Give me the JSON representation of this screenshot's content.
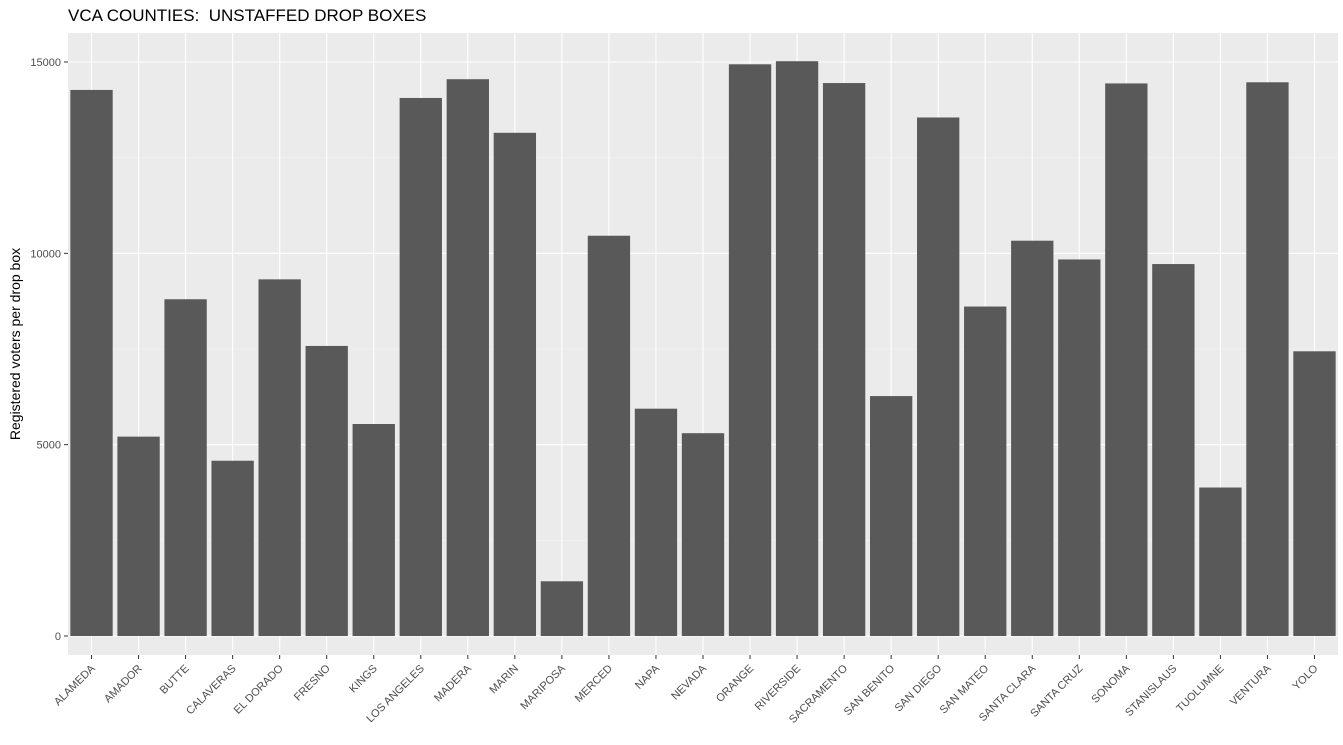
{
  "chart_data": {
    "type": "bar",
    "title": "VCA COUNTIES:  UNSTAFFED DROP BOXES",
    "xlabel": "",
    "ylabel": "Registered voters per drop box",
    "ylim": [
      0,
      15600
    ],
    "yticks": [
      0,
      5000,
      10000,
      15000
    ],
    "grid": true,
    "legend": "none",
    "categories": [
      "ALAMEDA",
      "AMADOR",
      "BUTTE",
      "CALAVERAS",
      "EL DORADO",
      "FRESNO",
      "KINGS",
      "LOS ANGELES",
      "MADERA",
      "MARIN",
      "MARIPOSA",
      "MERCED",
      "NAPA",
      "NEVADA",
      "ORANGE",
      "RIVERSIDE",
      "SACRAMENTO",
      "SAN BENITO",
      "SAN DIEGO",
      "SAN MATEO",
      "SANTA CLARA",
      "SANTA CRUZ",
      "SONOMA",
      "STANISLAUS",
      "TUOLUMNE",
      "VENTURA",
      "YOLO"
    ],
    "values": [
      14270,
      5210,
      8800,
      4580,
      9320,
      7580,
      5540,
      14060,
      14550,
      13150,
      1430,
      10460,
      5940,
      5300,
      14940,
      15020,
      14450,
      6270,
      13550,
      8610,
      10330,
      9840,
      14440,
      9720,
      3880,
      14470,
      7440
    ],
    "colors": {
      "bar": "#595959",
      "panel": "#ebebeb",
      "grid_major": "#ffffff",
      "grid_minor": "#f4f4f4",
      "tick_text": "#4d4d4d"
    }
  }
}
